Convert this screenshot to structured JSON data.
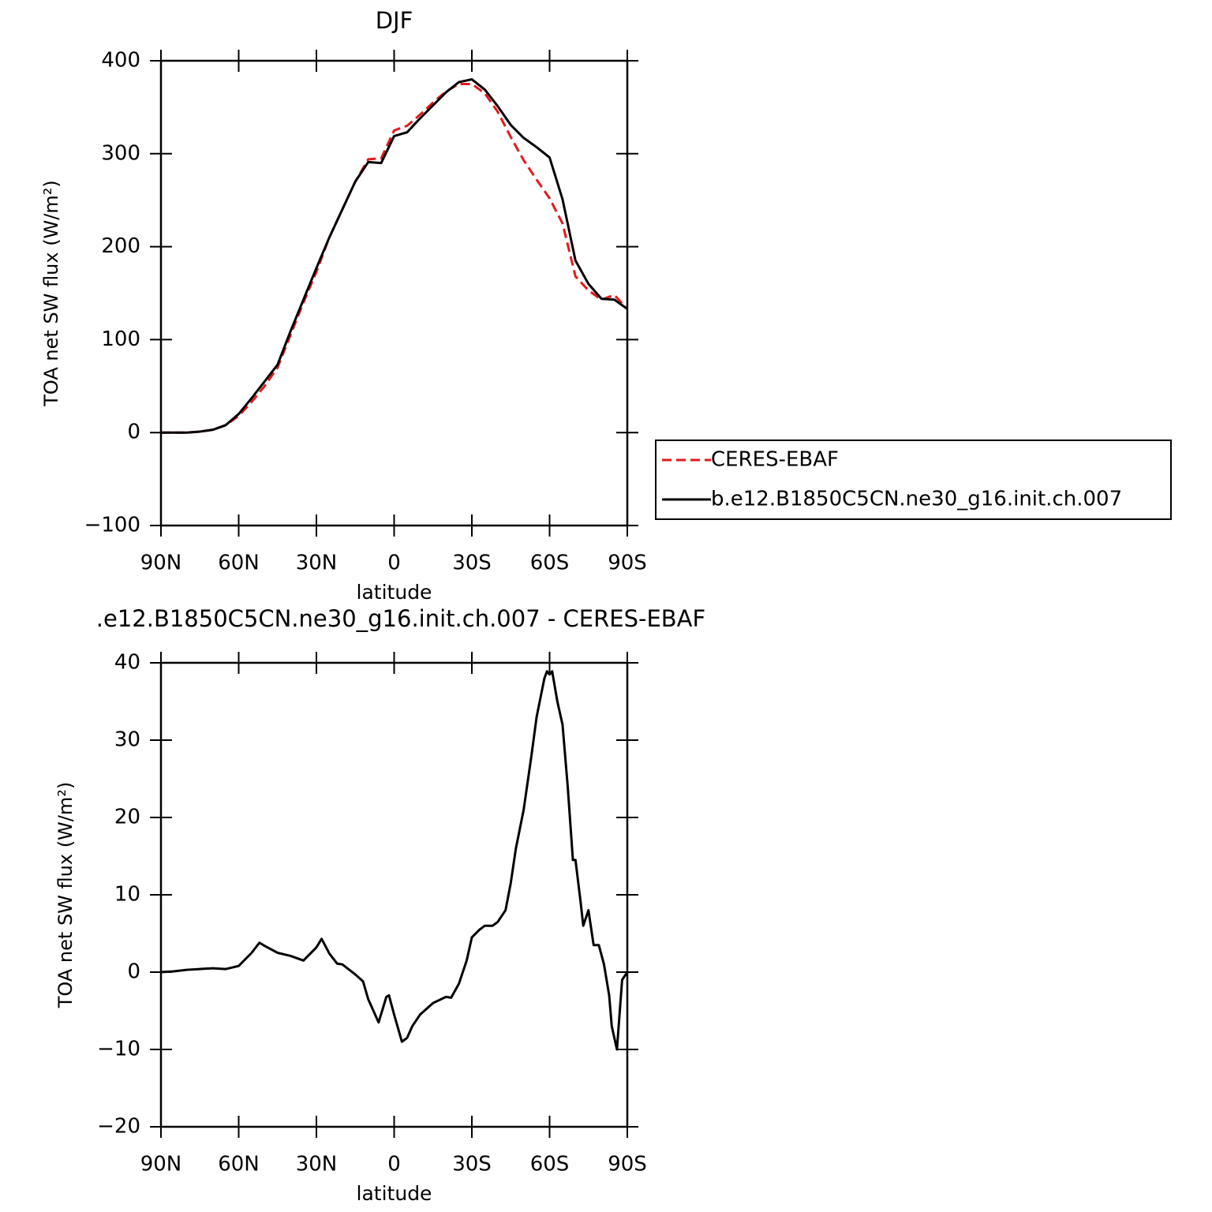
{
  "chart_data": [
    {
      "type": "line",
      "title": "DJF",
      "xlabel": "latitude",
      "ylabel": "TOA net SW flux (W/m²)",
      "x": [
        90,
        85,
        80,
        75,
        70,
        65,
        60,
        55,
        50,
        45,
        40,
        35,
        30,
        25,
        20,
        15,
        10,
        5,
        0,
        -5,
        -10,
        -15,
        -20,
        -25,
        -30,
        -35,
        -40,
        -45,
        -50,
        -55,
        -60,
        -65,
        -70,
        -75,
        -80,
        -85,
        -90
      ],
      "series": [
        {
          "name": "CERES-EBAF",
          "color": "#e41a1c",
          "linestyle": "dashed",
          "values": [
            0,
            0,
            0,
            1,
            3,
            8,
            18,
            33,
            50,
            70,
            105,
            140,
            173,
            210,
            240,
            270,
            294,
            295,
            325,
            330,
            342,
            355,
            367,
            375,
            375,
            365,
            345,
            318,
            293,
            272,
            252,
            225,
            168,
            153,
            143,
            148,
            133
          ]
        },
        {
          "name": "b.e12.B1850C5CN.ne30_g16.init.ch.007",
          "color": "#000000",
          "linestyle": "solid",
          "values": [
            0,
            0,
            0,
            1,
            3,
            8,
            20,
            37,
            55,
            73,
            109,
            143,
            177,
            210,
            240,
            270,
            291,
            290,
            319,
            323,
            338,
            352,
            366,
            377,
            380,
            369,
            351,
            331,
            317,
            307,
            296,
            251,
            185,
            160,
            144,
            143,
            133
          ]
        }
      ],
      "xlim": [
        90,
        -90
      ],
      "xticks": [
        {
          "value": 90,
          "label": "90N"
        },
        {
          "value": 60,
          "label": "60N"
        },
        {
          "value": 30,
          "label": "30N"
        },
        0,
        {
          "value": -30,
          "label": "30S"
        },
        {
          "value": -60,
          "label": "60S"
        },
        {
          "value": -90,
          "label": "90S"
        }
      ],
      "ylim": [
        -100,
        400
      ],
      "yticks": [
        -100,
        0,
        100,
        200,
        300,
        400
      ],
      "legend": "right"
    },
    {
      "type": "line",
      "title": ".e12.B1850C5CN.ne30_g16.init.ch.007 - CERES-EBAF",
      "xlabel": "latitude",
      "ylabel": "TOA net SW flux (W/m²)",
      "x": [
        90,
        85,
        80,
        75,
        70,
        65,
        60,
        55,
        52,
        50,
        45,
        40,
        35,
        30,
        28,
        25,
        22,
        20,
        15,
        12,
        10,
        6,
        3,
        2,
        0,
        -3,
        -5,
        -7,
        -10,
        -15,
        -20,
        -22,
        -25,
        -28,
        -30,
        -33,
        -35,
        -38,
        -40,
        -43,
        -45,
        -47,
        -50,
        -53,
        -55,
        -58,
        -59,
        -60,
        -61,
        -63,
        -65,
        -67,
        -69,
        -70,
        -72,
        -73,
        -75,
        -77,
        -79,
        -81,
        -83,
        -84,
        -86,
        -88,
        -90
      ],
      "values": [
        0,
        0.1,
        0.3,
        0.4,
        0.5,
        0.4,
        0.8,
        2.5,
        3.8,
        3.4,
        2.5,
        2.1,
        1.5,
        3.2,
        4.3,
        2.4,
        1.1,
        1.0,
        -0.3,
        -1.2,
        -3.5,
        -6.5,
        -3.2,
        -3.0,
        -5.5,
        -9.0,
        -8.5,
        -7.0,
        -5.5,
        -4.0,
        -3.2,
        -3.3,
        -1.5,
        1.5,
        4.5,
        5.5,
        6.0,
        6.0,
        6.5,
        8.0,
        11.5,
        16,
        21,
        28,
        33,
        38,
        38.9,
        38.5,
        38.9,
        35,
        32,
        24,
        14.5,
        14.5,
        9,
        6,
        8,
        3.5,
        3.5,
        1,
        -3,
        -7,
        -10,
        -1,
        0
      ],
      "color": "#000000",
      "xlim": [
        90,
        -90
      ],
      "xticks": [
        {
          "value": 90,
          "label": "90N"
        },
        {
          "value": 60,
          "label": "60N"
        },
        {
          "value": 30,
          "label": "30N"
        },
        0,
        {
          "value": -30,
          "label": "30S"
        },
        {
          "value": -60,
          "label": "60S"
        },
        {
          "value": -90,
          "label": "90S"
        }
      ],
      "ylim": [
        -20,
        40
      ],
      "yticks": [
        -20,
        -10,
        0,
        10,
        20,
        30,
        40
      ]
    }
  ]
}
